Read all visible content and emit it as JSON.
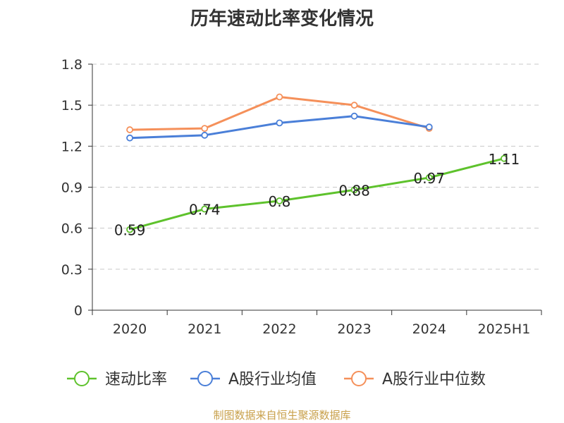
{
  "chart_data": {
    "type": "line",
    "title": "历年速动比率变化情况",
    "categories": [
      "2020",
      "2021",
      "2022",
      "2023",
      "2024",
      "2025H1"
    ],
    "ylim": [
      0,
      1.8
    ],
    "yticks": [
      "0",
      "0.3",
      "0.6",
      "0.9",
      "1.2",
      "1.5",
      "1.8"
    ],
    "xlabel": "",
    "ylabel": "",
    "grid": "horizontal-dashed",
    "legend_position": "bottom",
    "series": [
      {
        "name": "速动比率",
        "color": "#5ec22c",
        "values": [
          0.59,
          0.74,
          0.8,
          0.88,
          0.97,
          1.11
        ],
        "labels": [
          "0.59",
          "0.74",
          "0.8",
          "0.88",
          "0.97",
          "1.11"
        ]
      },
      {
        "name": "A股行业均值",
        "color": "#4a7fd8",
        "values": [
          1.26,
          1.28,
          1.37,
          1.42,
          1.34,
          null
        ]
      },
      {
        "name": "A股行业中位数",
        "color": "#f5905a",
        "values": [
          1.32,
          1.33,
          1.56,
          1.5,
          1.33,
          null
        ]
      }
    ]
  },
  "source": "制图数据来自恒生聚源数据库"
}
